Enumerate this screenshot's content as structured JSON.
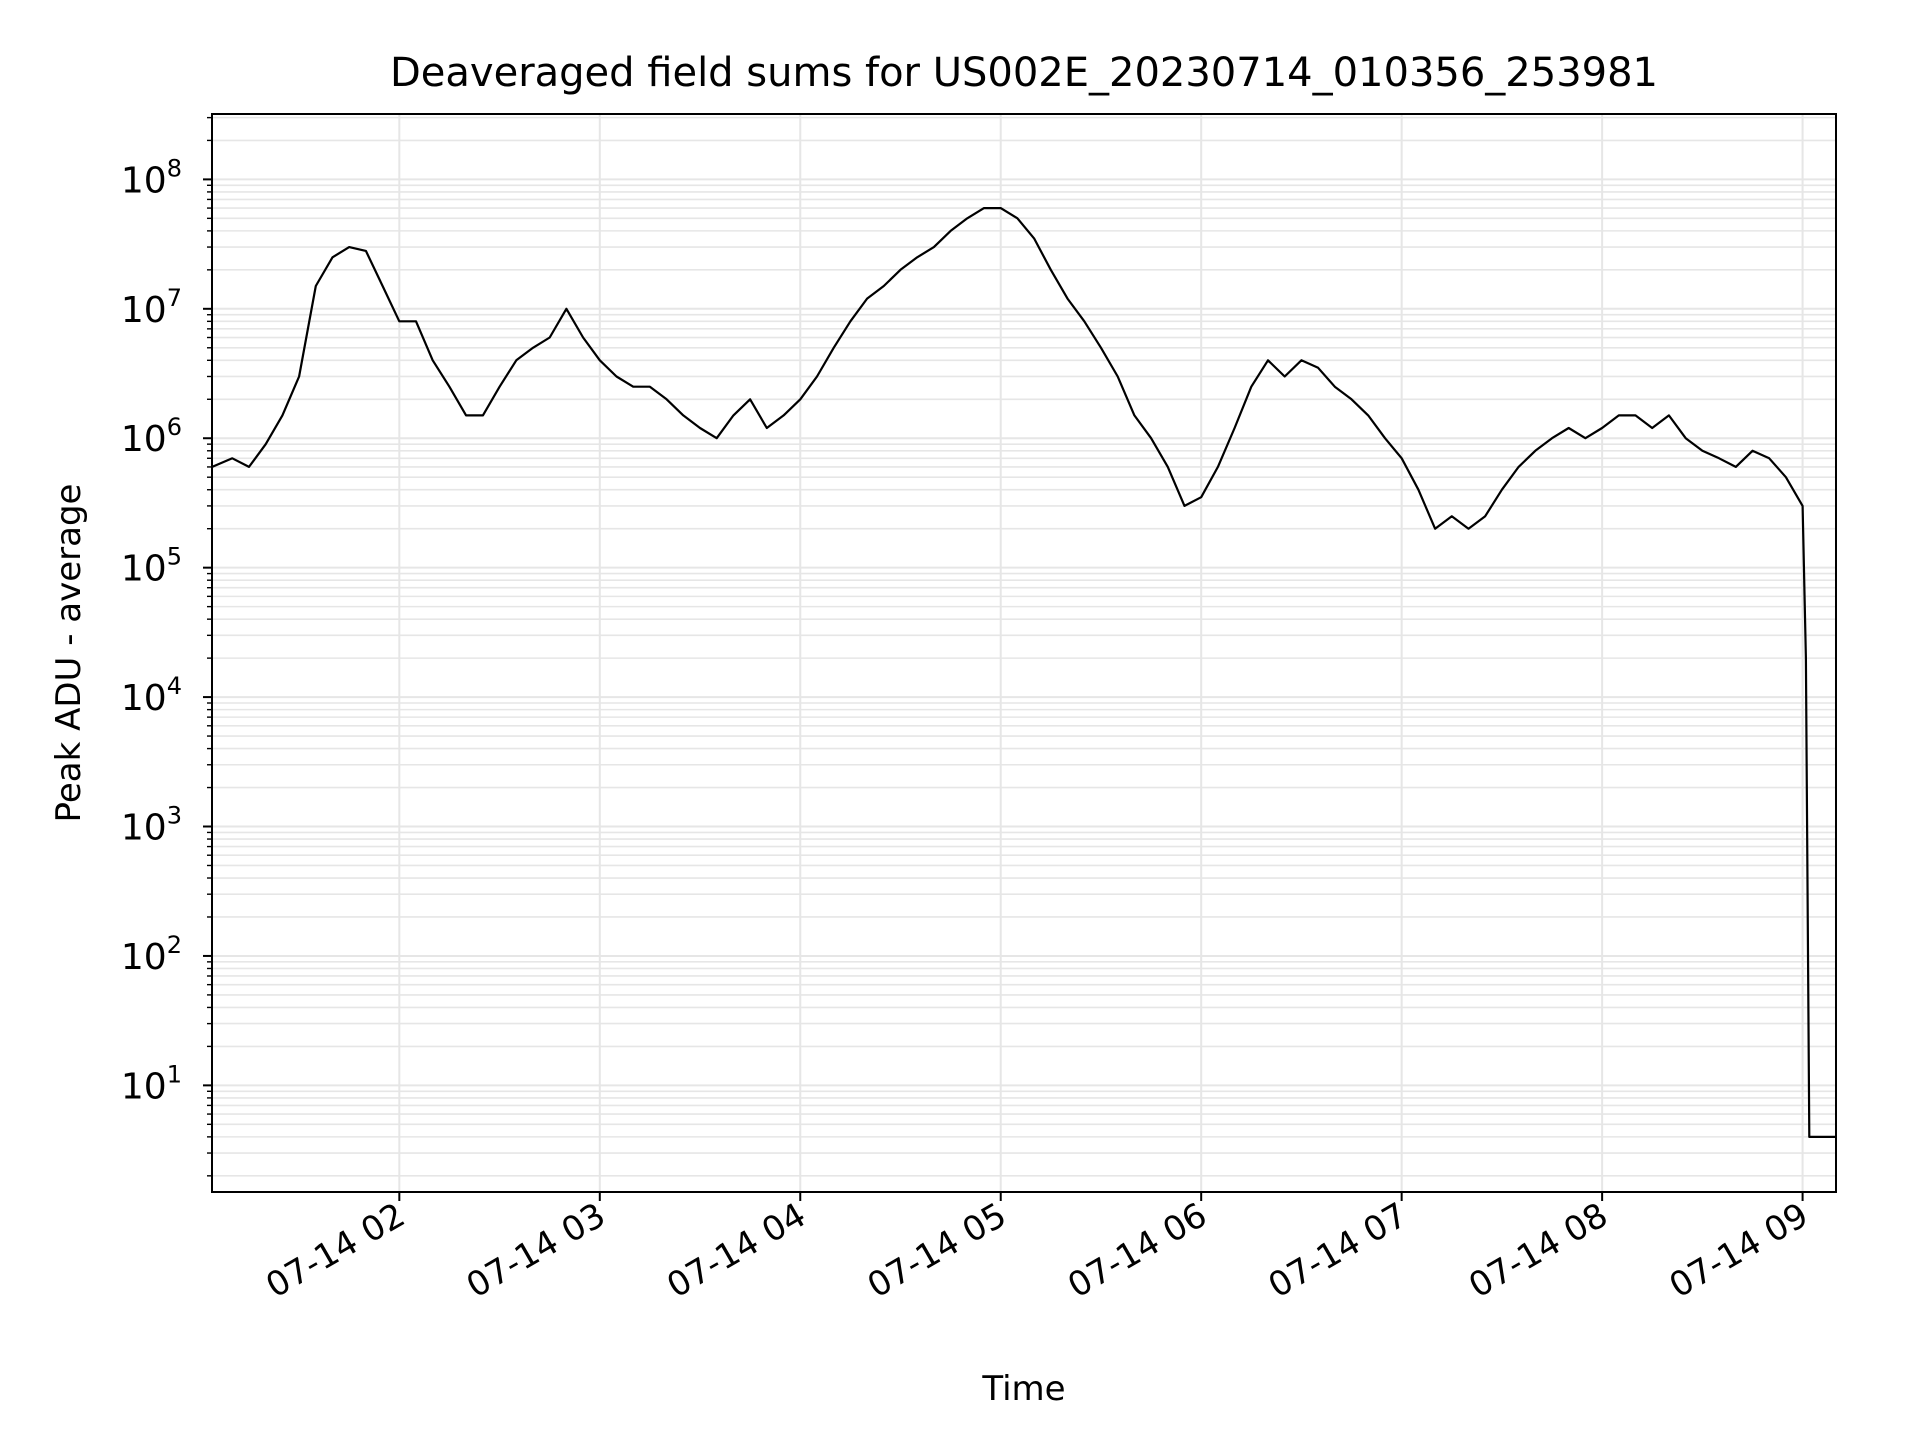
{
  "chart_data": {
    "type": "line",
    "title": "Deaveraged field sums for US002E_20230714_010356_253981",
    "xlabel": "Time",
    "ylabel": "Peak ADU - average",
    "y_scale": "log",
    "grid": true,
    "x_range": [
      "2023-07-14 01:03:56",
      "2023-07-14 09:10:00"
    ],
    "ylim": [
      1.5,
      320000000.0
    ],
    "x_ticks": [
      {
        "time": "2023-07-14 02:00",
        "label": "07-14 02"
      },
      {
        "time": "2023-07-14 03:00",
        "label": "07-14 03"
      },
      {
        "time": "2023-07-14 04:00",
        "label": "07-14 04"
      },
      {
        "time": "2023-07-14 05:00",
        "label": "07-14 05"
      },
      {
        "time": "2023-07-14 06:00",
        "label": "07-14 06"
      },
      {
        "time": "2023-07-14 07:00",
        "label": "07-14 07"
      },
      {
        "time": "2023-07-14 08:00",
        "label": "07-14 08"
      },
      {
        "time": "2023-07-14 09:00",
        "label": "07-14 09"
      }
    ],
    "y_ticks": [
      {
        "value": 10,
        "base": "10",
        "exp": "1"
      },
      {
        "value": 100,
        "base": "10",
        "exp": "2"
      },
      {
        "value": 1000,
        "base": "10",
        "exp": "3"
      },
      {
        "value": 10000,
        "base": "10",
        "exp": "4"
      },
      {
        "value": 100000,
        "base": "10",
        "exp": "5"
      },
      {
        "value": 1000000,
        "base": "10",
        "exp": "6"
      },
      {
        "value": 10000000,
        "base": "10",
        "exp": "7"
      },
      {
        "value": 100000000,
        "base": "10",
        "exp": "8"
      }
    ],
    "series": [
      {
        "color": "#000000",
        "x": [
          "2023-07-14 01:04",
          "2023-07-14 01:10",
          "2023-07-14 01:15",
          "2023-07-14 01:20",
          "2023-07-14 01:25",
          "2023-07-14 01:30",
          "2023-07-14 01:35",
          "2023-07-14 01:40",
          "2023-07-14 01:45",
          "2023-07-14 01:50",
          "2023-07-14 01:55",
          "2023-07-14 02:00",
          "2023-07-14 02:05",
          "2023-07-14 02:10",
          "2023-07-14 02:15",
          "2023-07-14 02:20",
          "2023-07-14 02:25",
          "2023-07-14 02:30",
          "2023-07-14 02:35",
          "2023-07-14 02:40",
          "2023-07-14 02:45",
          "2023-07-14 02:50",
          "2023-07-14 02:55",
          "2023-07-14 03:00",
          "2023-07-14 03:05",
          "2023-07-14 03:10",
          "2023-07-14 03:15",
          "2023-07-14 03:20",
          "2023-07-14 03:25",
          "2023-07-14 03:30",
          "2023-07-14 03:35",
          "2023-07-14 03:40",
          "2023-07-14 03:45",
          "2023-07-14 03:50",
          "2023-07-14 03:55",
          "2023-07-14 04:00",
          "2023-07-14 04:05",
          "2023-07-14 04:10",
          "2023-07-14 04:15",
          "2023-07-14 04:20",
          "2023-07-14 04:25",
          "2023-07-14 04:30",
          "2023-07-14 04:35",
          "2023-07-14 04:40",
          "2023-07-14 04:45",
          "2023-07-14 04:50",
          "2023-07-14 04:55",
          "2023-07-14 05:00",
          "2023-07-14 05:05",
          "2023-07-14 05:10",
          "2023-07-14 05:15",
          "2023-07-14 05:20",
          "2023-07-14 05:25",
          "2023-07-14 05:30",
          "2023-07-14 05:35",
          "2023-07-14 05:40",
          "2023-07-14 05:45",
          "2023-07-14 05:50",
          "2023-07-14 05:55",
          "2023-07-14 06:00",
          "2023-07-14 06:05",
          "2023-07-14 06:10",
          "2023-07-14 06:15",
          "2023-07-14 06:20",
          "2023-07-14 06:25",
          "2023-07-14 06:30",
          "2023-07-14 06:35",
          "2023-07-14 06:40",
          "2023-07-14 06:45",
          "2023-07-14 06:50",
          "2023-07-14 06:55",
          "2023-07-14 07:00",
          "2023-07-14 07:05",
          "2023-07-14 07:10",
          "2023-07-14 07:15",
          "2023-07-14 07:20",
          "2023-07-14 07:25",
          "2023-07-14 07:30",
          "2023-07-14 07:35",
          "2023-07-14 07:40",
          "2023-07-14 07:45",
          "2023-07-14 07:50",
          "2023-07-14 07:55",
          "2023-07-14 08:00",
          "2023-07-14 08:05",
          "2023-07-14 08:10",
          "2023-07-14 08:15",
          "2023-07-14 08:20",
          "2023-07-14 08:25",
          "2023-07-14 08:30",
          "2023-07-14 08:35",
          "2023-07-14 08:40",
          "2023-07-14 08:45",
          "2023-07-14 08:50",
          "2023-07-14 08:55",
          "2023-07-14 09:00",
          "2023-07-14 09:01",
          "2023-07-14 09:02",
          "2023-07-14 09:05",
          "2023-07-14 09:10"
        ],
        "y": [
          600000,
          700000,
          600000,
          900000,
          1500000,
          3000000,
          15000000,
          25000000,
          30000000,
          28000000,
          15000000,
          8000000,
          8000000,
          4000000,
          2500000,
          1500000,
          1500000,
          2500000,
          4000000,
          5000000,
          6000000,
          10000000,
          6000000,
          4000000,
          3000000,
          2500000,
          2500000,
          2000000,
          1500000,
          1200000,
          1000000,
          1500000,
          2000000,
          1200000,
          1500000,
          2000000,
          3000000,
          5000000,
          8000000,
          12000000,
          15000000,
          20000000,
          25000000,
          30000000,
          40000000,
          50000000,
          60000000,
          60000000,
          50000000,
          35000000,
          20000000,
          12000000,
          8000000,
          5000000,
          3000000,
          1500000,
          1000000,
          600000,
          300000,
          350000,
          600000,
          1200000,
          2500000,
          4000000,
          3000000,
          4000000,
          3500000,
          2500000,
          2000000,
          1500000,
          1000000,
          700000,
          400000,
          200000,
          250000,
          200000,
          250000,
          400000,
          600000,
          800000,
          1000000,
          1200000,
          1000000,
          1200000,
          1500000,
          1500000,
          1200000,
          1500000,
          1000000,
          800000,
          700000,
          600000,
          800000,
          700000,
          500000,
          300000,
          20000,
          4,
          4,
          4
        ]
      }
    ]
  }
}
